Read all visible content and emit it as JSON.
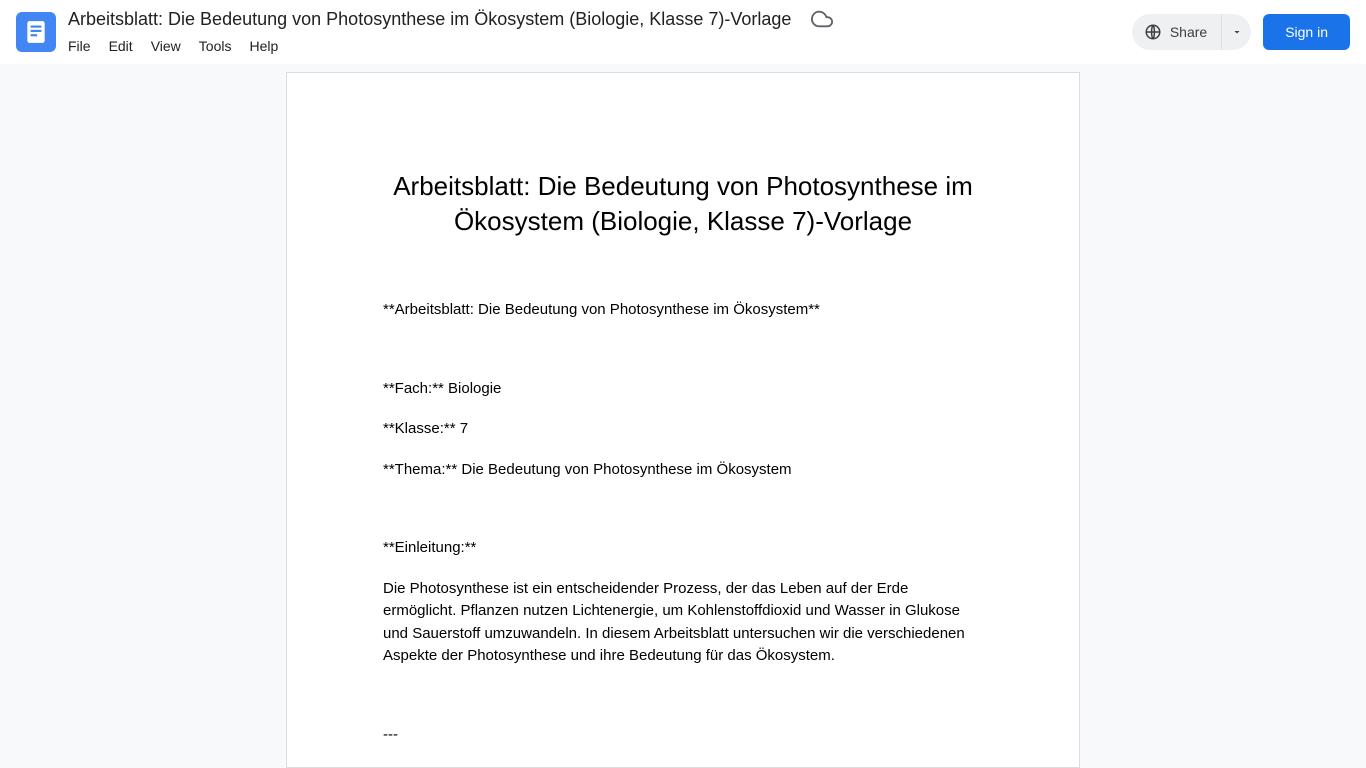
{
  "header": {
    "doc_title": "Arbeitsblatt: Die Bedeutung von Photosynthese im Ökosystem (Biologie, Klasse 7)-Vorlage",
    "menu": [
      "File",
      "Edit",
      "View",
      "Tools",
      "Help"
    ],
    "share_label": "Share",
    "signin_label": "Sign in"
  },
  "document": {
    "heading": "Arbeitsblatt: Die Bedeutung von Photosynthese im Ökosystem (Biologie, Klasse 7)-Vorlage",
    "paragraphs": [
      "**Arbeitsblatt: Die Bedeutung von Photosynthese im Ökosystem**",
      "",
      "**Fach:** Biologie",
      "**Klasse:** 7",
      "**Thema:** Die Bedeutung von Photosynthese im Ökosystem",
      "",
      "**Einleitung:**",
      "Die Photosynthese ist ein entscheidender Prozess, der das Leben auf der Erde ermöglicht. Pflanzen nutzen Lichtenergie, um Kohlenstoffdioxid und Wasser in Glukose und Sauerstoff umzuwandeln. In diesem Arbeitsblatt untersuchen wir die verschiedenen Aspekte der Photosynthese und ihre Bedeutung für das Ökosystem.",
      "",
      "---"
    ]
  }
}
